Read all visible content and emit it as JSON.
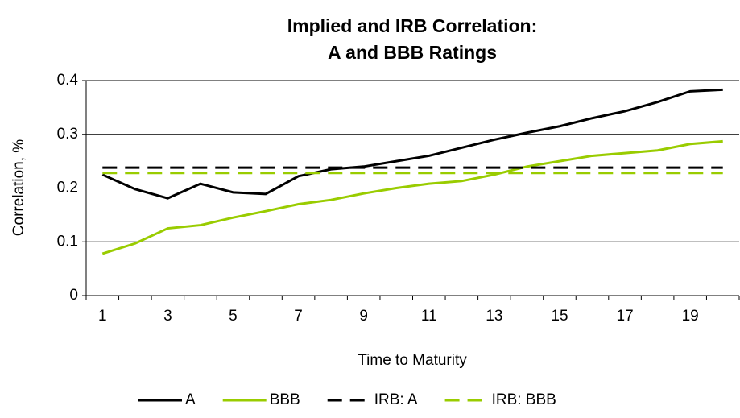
{
  "chart_data": {
    "type": "line",
    "title": [
      "Implied and IRB Correlation:",
      "A and BBB Ratings"
    ],
    "x_label": "Time to Maturity",
    "y_label": "Correlation, %",
    "categories": [
      "1",
      null,
      "3",
      null,
      "5",
      null,
      "7",
      null,
      "9",
      null,
      "11",
      null,
      "13",
      null,
      "15",
      null,
      "17",
      null,
      "19",
      null
    ],
    "series": [
      {
        "name": "A",
        "color": "#000000",
        "dash": false,
        "values": [
          0.225,
          0.198,
          0.181,
          0.208,
          0.192,
          0.189,
          0.222,
          0.235,
          0.24,
          0.25,
          0.26,
          0.275,
          0.29,
          0.303,
          0.315,
          0.33,
          0.343,
          0.36,
          0.38,
          0.383
        ]
      },
      {
        "name": "BBB",
        "color": "#99cc00",
        "dash": false,
        "values": [
          0.078,
          0.097,
          0.125,
          0.131,
          0.145,
          0.157,
          0.17,
          0.178,
          0.19,
          0.2,
          0.208,
          0.213,
          0.225,
          0.24,
          0.25,
          0.26,
          0.265,
          0.27,
          0.282,
          0.287
        ]
      },
      {
        "name": "IRB: A",
        "color": "#000000",
        "dash": true,
        "values": [
          0.238,
          0.238,
          0.238,
          0.238,
          0.238,
          0.238,
          0.238,
          0.238,
          0.238,
          0.238,
          0.238,
          0.238,
          0.238,
          0.238,
          0.238,
          0.238,
          0.238,
          0.238,
          0.238,
          0.238
        ]
      },
      {
        "name": "IRB: BBB",
        "color": "#99cc00",
        "dash": true,
        "values": [
          0.228,
          0.228,
          0.228,
          0.228,
          0.228,
          0.228,
          0.228,
          0.228,
          0.228,
          0.228,
          0.228,
          0.228,
          0.228,
          0.228,
          0.228,
          0.228,
          0.228,
          0.228,
          0.228,
          0.228
        ]
      }
    ],
    "ylim": [
      0,
      0.4
    ],
    "yticks": [
      0,
      0.1,
      0.2,
      0.3,
      0.4
    ],
    "grid": true,
    "legend": "bottom"
  }
}
